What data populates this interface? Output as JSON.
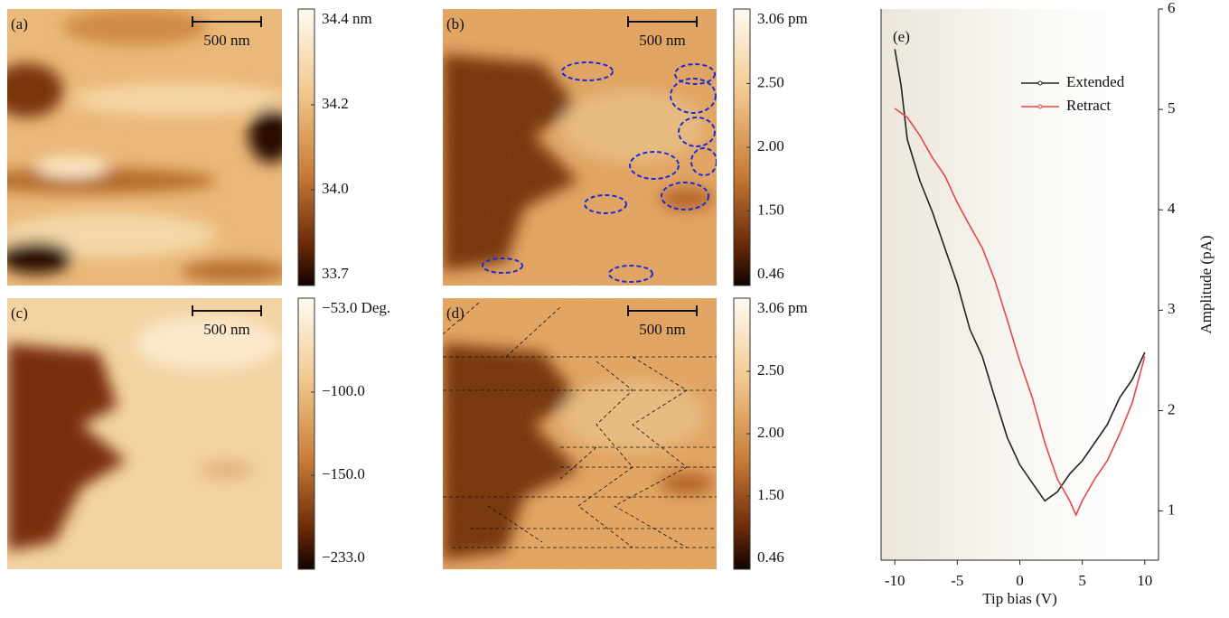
{
  "panels": [
    {
      "label": "(a)",
      "scale_bar": "500 nm",
      "colorbar_labels": [
        "34.4 nm",
        "34.2",
        "34.0",
        "33.7"
      ]
    },
    {
      "label": "(b)",
      "scale_bar": "500 nm",
      "colorbar_labels": [
        "3.06 pm",
        "2.50",
        "2.00",
        "1.50",
        "0.46"
      ]
    },
    {
      "label": "(c)",
      "scale_bar": "500 nm",
      "colorbar_labels": [
        "−53.0 Deg.",
        "−100.0",
        "−150.0",
        "−233.0"
      ]
    },
    {
      "label": "(d)",
      "scale_bar": "500 nm",
      "colorbar_labels": [
        "3.06 pm",
        "2.50",
        "2.00",
        "1.50",
        "0.46"
      ]
    }
  ],
  "chart_data": {
    "type": "line",
    "label": "(e)",
    "x_label": "Tip bias (V)",
    "y_label": "Amplitude (pA)",
    "xlim": [
      -11.1,
      11.1
    ],
    "ylim": [
      0.51,
      6
    ],
    "xticks": [
      -10,
      -5,
      0,
      5,
      10
    ],
    "yticks": [
      1,
      2,
      3,
      4,
      5,
      6
    ],
    "series": [
      {
        "name": "Extended",
        "color": "#222222",
        "x": [
          -10,
          -9.5,
          -9,
          -8,
          -7,
          -6,
          -5,
          -4,
          -3,
          -2,
          -1,
          0,
          1,
          2,
          3,
          4,
          5,
          6,
          7,
          8,
          9,
          10
        ],
        "values": [
          5.6,
          5.24,
          4.7,
          4.29,
          3.98,
          3.62,
          3.26,
          2.81,
          2.54,
          2.13,
          1.73,
          1.46,
          1.28,
          1.1,
          1.19,
          1.37,
          1.5,
          1.68,
          1.86,
          2.13,
          2.31,
          2.58
        ]
      },
      {
        "name": "Retract",
        "color": "#e8454a",
        "x": [
          -10,
          -9,
          -8,
          -7,
          -6,
          -5,
          -4,
          -3,
          -2,
          -1,
          0,
          1,
          2,
          3,
          4,
          4.5,
          5,
          6,
          7,
          8,
          9,
          10
        ],
        "values": [
          5.01,
          4.92,
          4.74,
          4.52,
          4.34,
          4.07,
          3.84,
          3.62,
          3.3,
          2.9,
          2.49,
          2.13,
          1.68,
          1.32,
          1.1,
          0.96,
          1.1,
          1.32,
          1.5,
          1.77,
          2.08,
          2.54
        ]
      }
    ]
  }
}
